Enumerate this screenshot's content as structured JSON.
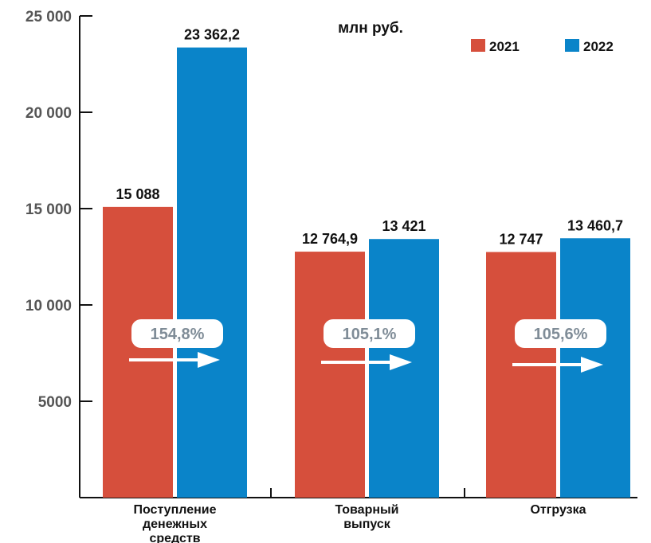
{
  "chart_data": {
    "type": "bar",
    "title": "млн руб.",
    "categories": [
      [
        "Поступление",
        "денежных",
        "средств"
      ],
      [
        "Товарный",
        "выпуск"
      ],
      [
        "Отгрузка"
      ]
    ],
    "series": [
      {
        "name": "2021",
        "color": "#d64f3c",
        "values": [
          15088,
          12764.9,
          12747
        ],
        "labels": [
          "15 088",
          "12 764,9",
          "12 747"
        ]
      },
      {
        "name": "2022",
        "color": "#0a84c9",
        "values": [
          23362.2,
          13421,
          13460.7
        ],
        "labels": [
          "23 362,2",
          "13 421",
          "13 460,7"
        ]
      }
    ],
    "growth_labels": [
      "154,8%",
      "105,1%",
      "105,6%"
    ],
    "yticks": [
      {
        "value": 5000,
        "label": "5000"
      },
      {
        "value": 10000,
        "label": "10 000"
      },
      {
        "value": 15000,
        "label": "15 000"
      },
      {
        "value": 20000,
        "label": "20 000"
      },
      {
        "value": 25000,
        "label": "25 000"
      }
    ],
    "ylim": [
      0,
      25000
    ],
    "legend_position": "top-right",
    "grid": false
  }
}
